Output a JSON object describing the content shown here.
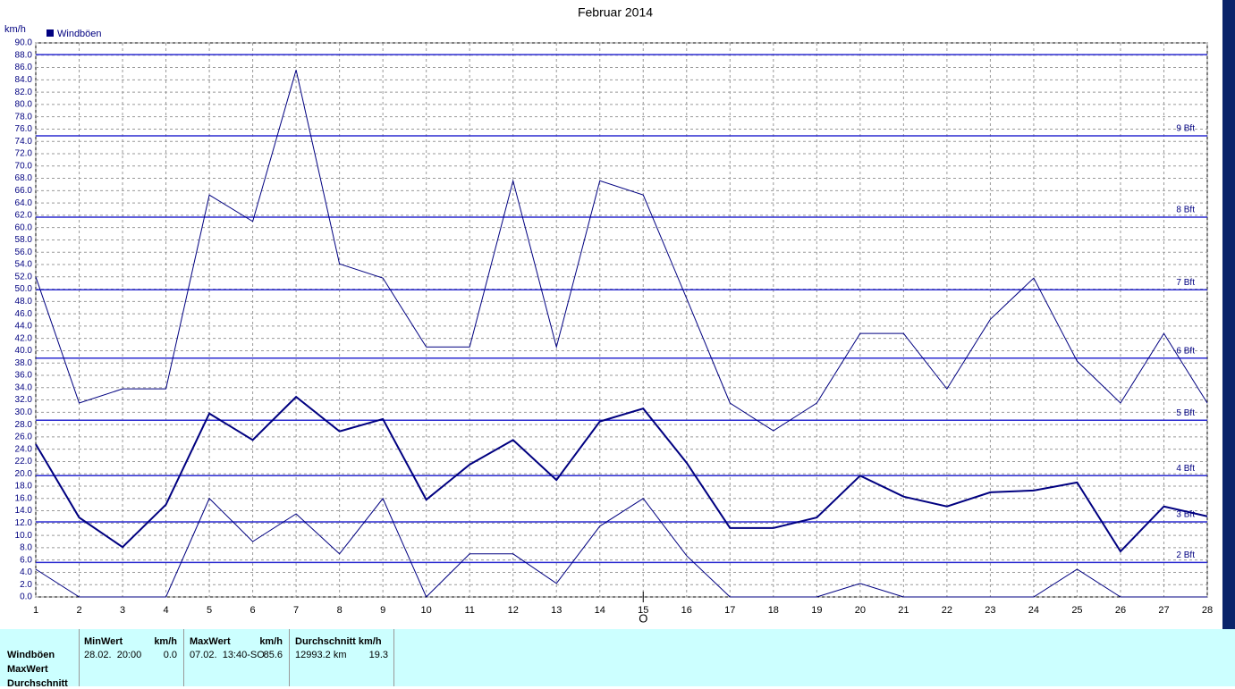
{
  "chart_data": {
    "type": "line",
    "title": "Februar 2014",
    "y_unit": "km/h",
    "x_marker_label": "O",
    "x_marker_at": 15,
    "x": [
      1,
      2,
      3,
      4,
      5,
      6,
      7,
      8,
      9,
      10,
      11,
      12,
      13,
      14,
      15,
      16,
      17,
      18,
      19,
      20,
      21,
      22,
      23,
      24,
      25,
      26,
      27,
      28
    ],
    "xlim": [
      1,
      28
    ],
    "xticks": [
      1,
      2,
      3,
      4,
      5,
      6,
      7,
      8,
      9,
      10,
      11,
      12,
      13,
      14,
      15,
      16,
      17,
      18,
      19,
      20,
      21,
      22,
      23,
      24,
      25,
      26,
      27,
      28
    ],
    "ylim": [
      0,
      90
    ],
    "yticks": [
      {
        "value": 0,
        "label": "0.0"
      },
      {
        "value": 2,
        "label": "2.0"
      },
      {
        "value": 4,
        "label": "4.0"
      },
      {
        "value": 6,
        "label": "6.0"
      },
      {
        "value": 8,
        "label": "8.0"
      },
      {
        "value": 10,
        "label": "10.0"
      },
      {
        "value": 12,
        "label": "12.0"
      },
      {
        "value": 14,
        "label": "14.0"
      },
      {
        "value": 16,
        "label": "16.0"
      },
      {
        "value": 18,
        "label": "18.0"
      },
      {
        "value": 20,
        "label": "20.0"
      },
      {
        "value": 22,
        "label": "22.0"
      },
      {
        "value": 24,
        "label": "24.0"
      },
      {
        "value": 26,
        "label": "26.0"
      },
      {
        "value": 28,
        "label": "28.0"
      },
      {
        "value": 30,
        "label": "30.0"
      },
      {
        "value": 32,
        "label": "32.0"
      },
      {
        "value": 34,
        "label": "34.0"
      },
      {
        "value": 36,
        "label": "36.0"
      },
      {
        "value": 38,
        "label": "38.0"
      },
      {
        "value": 40,
        "label": "40.0"
      },
      {
        "value": 42,
        "label": "42.0"
      },
      {
        "value": 44,
        "label": "44.0"
      },
      {
        "value": 46,
        "label": "46.0"
      },
      {
        "value": 48,
        "label": "48.0"
      },
      {
        "value": 50,
        "label": "50.0"
      },
      {
        "value": 52,
        "label": "52.0"
      },
      {
        "value": 54,
        "label": "54.0"
      },
      {
        "value": 56,
        "label": "56.0"
      },
      {
        "value": 58,
        "label": "58.0"
      },
      {
        "value": 60,
        "label": "60.0"
      },
      {
        "value": 62,
        "label": "62.0"
      },
      {
        "value": 64,
        "label": "64.0"
      },
      {
        "value": 66,
        "label": "66.0"
      },
      {
        "value": 68,
        "label": "68.0"
      },
      {
        "value": 70,
        "label": "70.0"
      },
      {
        "value": 72,
        "label": "72.0"
      },
      {
        "value": 74,
        "label": "74.0"
      },
      {
        "value": 76,
        "label": "76.0"
      },
      {
        "value": 78,
        "label": "78.0"
      },
      {
        "value": 80,
        "label": "80.0"
      },
      {
        "value": 82,
        "label": "82.0"
      },
      {
        "value": 84,
        "label": "84.0"
      },
      {
        "value": 86,
        "label": "86.0"
      },
      {
        "value": 88,
        "label": "88.0"
      },
      {
        "value": 90,
        "label": "90.0"
      }
    ],
    "grid": true,
    "reference_lines": [
      {
        "value": 5.6,
        "label": "2 Bft"
      },
      {
        "value": 12.2,
        "label": "3 Bft"
      },
      {
        "value": 19.7,
        "label": "4 Bft"
      },
      {
        "value": 28.7,
        "label": "5 Bft"
      },
      {
        "value": 38.8,
        "label": "6 Bft"
      },
      {
        "value": 49.9,
        "label": "7 Bft"
      },
      {
        "value": 61.7,
        "label": "8 Bft"
      },
      {
        "value": 74.9,
        "label": "9 Bft"
      },
      {
        "value": 88.1,
        "label": null
      }
    ],
    "reference_color": "#2b2bd0",
    "series": [
      {
        "color": "#000080",
        "width": 1,
        "values": [
          52,
          31.5,
          33.8,
          33.8,
          65.3,
          61,
          85.6,
          54.1,
          51.8,
          40.6,
          40.6,
          67.6,
          40.6,
          67.6,
          65.3,
          48.5,
          31.5,
          27,
          31.5,
          42.8,
          42.8,
          33.8,
          45.1,
          51.8,
          38.3,
          31.5,
          42.8,
          31.5
        ]
      },
      {
        "name": "Windböen",
        "color": "#000080",
        "width": 2,
        "values": [
          24.8,
          12.9,
          8.1,
          15,
          29.8,
          25.5,
          32.5,
          26.9,
          28.9,
          15.8,
          21.5,
          25.5,
          19,
          28.5,
          30.6,
          21.8,
          11.2,
          11.2,
          12.9,
          19.7,
          16.3,
          14.7,
          17,
          17.3,
          18.6,
          7.4,
          14.7,
          13.1
        ]
      },
      {
        "color": "#000080",
        "width": 1,
        "values": [
          4.5,
          0,
          0,
          0,
          16,
          9,
          13.5,
          7,
          16,
          0,
          7,
          7,
          2.2,
          11.5,
          16,
          6.7,
          0,
          0,
          0,
          2.2,
          0,
          0,
          0,
          0,
          4.5,
          0,
          0,
          0
        ]
      }
    ]
  },
  "summary_table": {
    "row_labels": [
      "Windböen",
      "MaxWert",
      "Durchschnitt"
    ],
    "headers": [
      [
        "MinWert",
        "km/h"
      ],
      [
        "MaxWert",
        "km/h"
      ],
      [
        "Durchschnitt km/h"
      ]
    ],
    "cells": [
      [
        "28.02.  20:00",
        "0.0"
      ],
      [
        "07.02.  13:40-SO",
        "85.6"
      ],
      [
        "12993.2 km",
        "19.3"
      ]
    ]
  }
}
